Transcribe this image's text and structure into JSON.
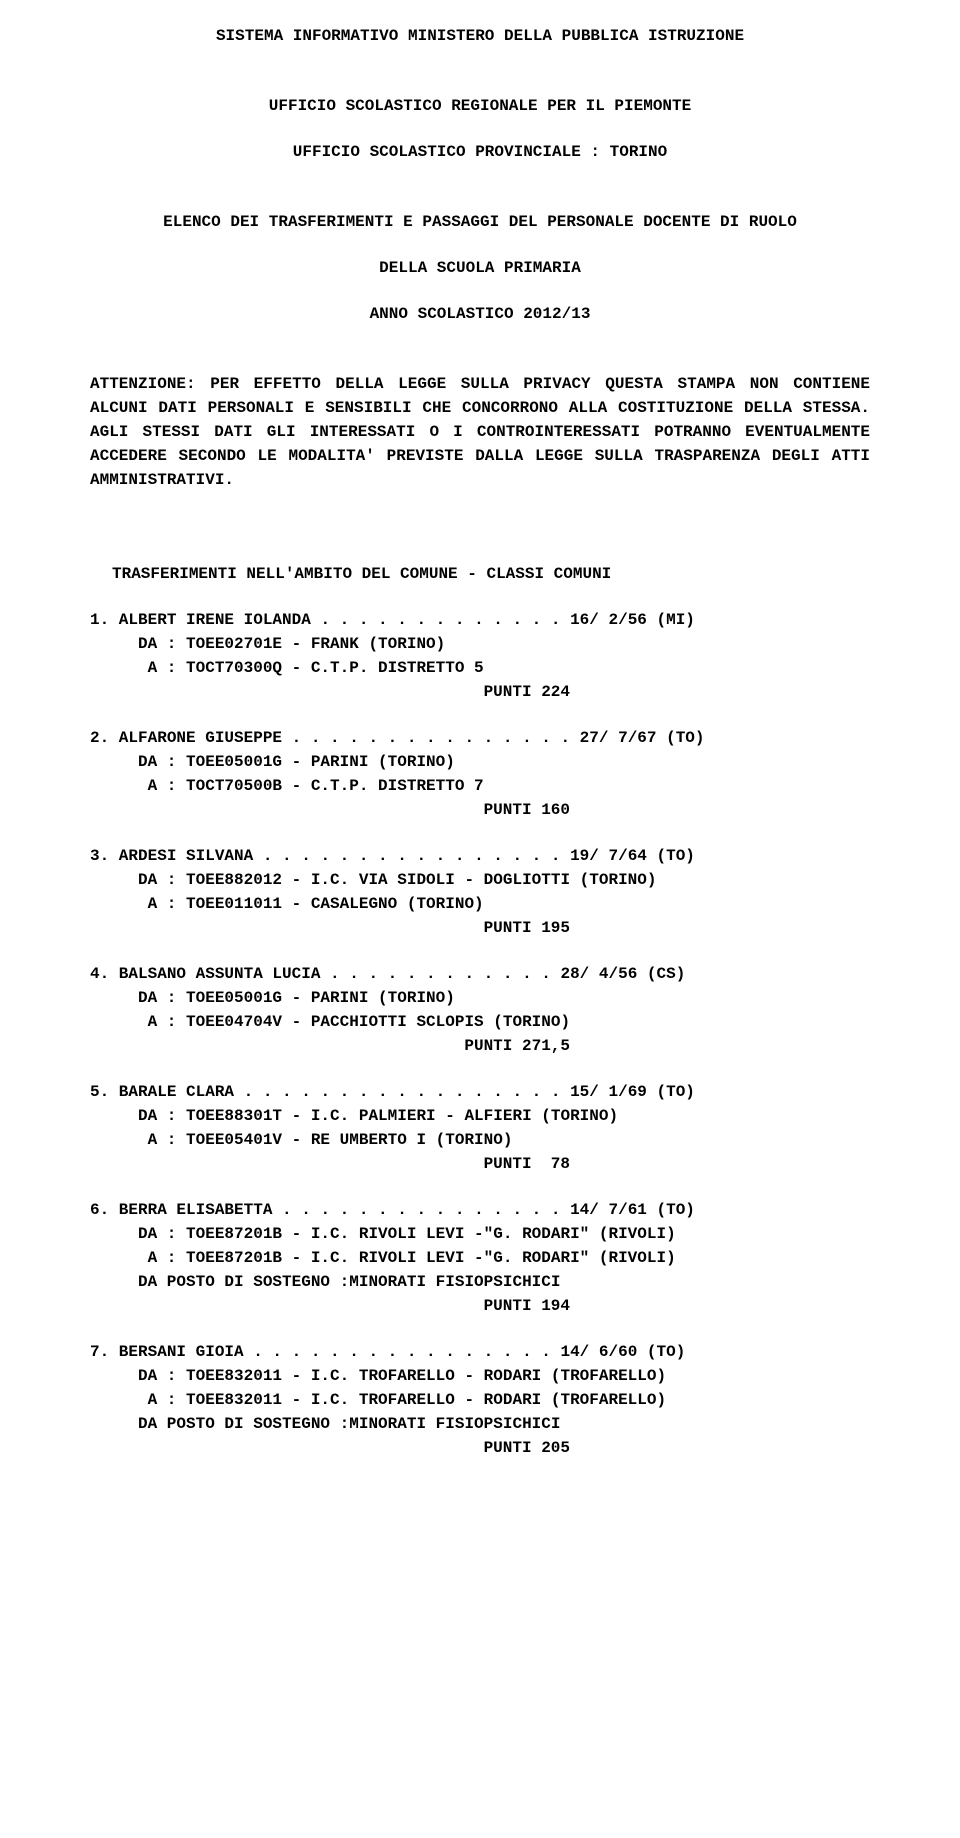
{
  "header": {
    "system": "SISTEMA INFORMATIVO MINISTERO DELLA PUBBLICA ISTRUZIONE",
    "office_regional": "UFFICIO SCOLASTICO REGIONALE PER IL PIEMONTE",
    "office_provincial": "UFFICIO SCOLASTICO PROVINCIALE : TORINO",
    "list_title_1": "ELENCO DEI TRASFERIMENTI E PASSAGGI DEL PERSONALE DOCENTE DI RUOLO",
    "school_level": "DELLA SCUOLA PRIMARIA",
    "school_year": "ANNO SCOLASTICO 2012/13"
  },
  "notice": "ATTENZIONE: PER EFFETTO DELLA LEGGE SULLA PRIVACY QUESTA STAMPA NON CONTIENE ALCUNI DATI PERSONALI E SENSIBILI CHE CONCORRONO ALLA COSTITUZIONE DELLA STESSA. AGLI STESSI DATI GLI INTERESSATI O I CONTROINTERESSATI POTRANNO EVENTUALMENTE ACCEDERE SECONDO LE MODALITA' PREVISTE DALLA LEGGE SULLA TRASPARENZA DEGLI ATTI AMMINISTRATIVI.",
  "section_title": "TRASFERIMENTI NELL'AMBITO DEL COMUNE - CLASSI COMUNI",
  "entries": [
    {
      "name_line": "1. ALBERT IRENE IOLANDA . . . . . . . . . . . . . 16/ 2/56 (MI)",
      "da": "DA : TOEE02701E - FRANK (TORINO)",
      "a": " A : TOCT70300Q - C.T.P. DISTRETTO 5",
      "extra": "",
      "points": "PUNTI 224"
    },
    {
      "name_line": "2. ALFARONE GIUSEPPE . . . . . . . . . . . . . . . 27/ 7/67 (TO)",
      "da": "DA : TOEE05001G - PARINI (TORINO)",
      "a": " A : TOCT70500B - C.T.P. DISTRETTO 7",
      "extra": "",
      "points": "PUNTI 160"
    },
    {
      "name_line": "3. ARDESI SILVANA . . . . . . . . . . . . . . . . 19/ 7/64 (TO)",
      "da": "DA : TOEE882012 - I.C. VIA SIDOLI - DOGLIOTTI (TORINO)",
      "a": " A : TOEE011011 - CASALEGNO (TORINO)",
      "extra": "",
      "points": "PUNTI 195"
    },
    {
      "name_line": "4. BALSANO ASSUNTA LUCIA . . . . . . . . . . . . 28/ 4/56 (CS)",
      "da": "DA : TOEE05001G - PARINI (TORINO)",
      "a": " A : TOEE04704V - PACCHIOTTI SCLOPIS (TORINO)",
      "extra": "",
      "points": "PUNTI 271,5"
    },
    {
      "name_line": "5. BARALE CLARA . . . . . . . . . . . . . . . . . 15/ 1/69 (TO)",
      "da": "DA : TOEE88301T - I.C. PALMIERI - ALFIERI (TORINO)",
      "a": " A : TOEE05401V - RE UMBERTO I (TORINO)",
      "extra": "",
      "points": "PUNTI  78"
    },
    {
      "name_line": "6. BERRA ELISABETTA . . . . . . . . . . . . . . . 14/ 7/61 (TO)",
      "da": "DA : TOEE87201B - I.C. RIVOLI LEVI -\"G. RODARI\" (RIVOLI)",
      "a": " A : TOEE87201B - I.C. RIVOLI LEVI -\"G. RODARI\" (RIVOLI)",
      "extra": "DA POSTO DI SOSTEGNO :MINORATI FISIOPSICHICI",
      "points": "PUNTI 194"
    },
    {
      "name_line": "7. BERSANI GIOIA . . . . . . . . . . . . . . . . 14/ 6/60 (TO)",
      "da": "DA : TOEE832011 - I.C. TROFARELLO - RODARI (TROFARELLO)",
      "a": " A : TOEE832011 - I.C. TROFARELLO - RODARI (TROFARELLO)",
      "extra": "DA POSTO DI SOSTEGNO :MINORATI FISIOPSICHICI",
      "points": "PUNTI 205"
    }
  ]
}
